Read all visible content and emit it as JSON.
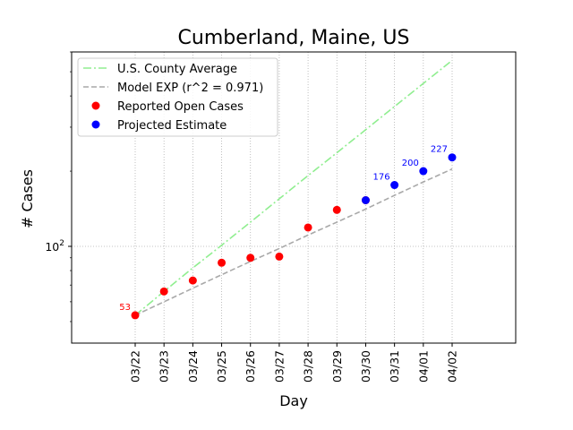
{
  "chart_data": {
    "type": "line",
    "title": "Cumberland, Maine, US",
    "xlabel": "Day",
    "ylabel": "# Cases",
    "y_scale": "log",
    "ylim": [
      41,
      600
    ],
    "y_ticks": [
      {
        "value": 100,
        "label": "10",
        "sup": "2"
      }
    ],
    "categories": [
      "03/22",
      "03/23",
      "03/24",
      "03/25",
      "03/26",
      "03/27",
      "03/28",
      "03/29",
      "03/30",
      "03/31",
      "04/01",
      "04/02"
    ],
    "grid": true,
    "legend_position": "top-left",
    "series": [
      {
        "name": "U.S. County Average",
        "style": "dash-dot",
        "color": "#90ee90",
        "values": [
          53,
          66,
          82,
          101,
          125,
          155,
          192,
          237,
          293,
          363,
          449,
          555
        ]
      },
      {
        "name": "Model EXP (r^2 = 0.971)",
        "style": "dashed",
        "color": "#a9a9a9",
        "values": [
          53,
          60,
          68,
          77,
          87,
          98,
          111,
          125,
          141,
          160,
          181,
          204
        ]
      },
      {
        "name": "Reported Open Cases",
        "style": "markers",
        "color": "#ff0000",
        "values": [
          53,
          66,
          73,
          86,
          90,
          91,
          119,
          140,
          153,
          null,
          null,
          null
        ]
      },
      {
        "name": "Projected Estimate",
        "style": "markers",
        "color": "#0000ff",
        "values": [
          null,
          null,
          null,
          null,
          null,
          null,
          null,
          null,
          153,
          176,
          200,
          227
        ]
      }
    ],
    "annotations": [
      {
        "category": "03/22",
        "value": 53,
        "text": "53",
        "color": "#ff0000"
      },
      {
        "category": "03/31",
        "value": 176,
        "text": "176",
        "color": "#0000ff"
      },
      {
        "category": "04/01",
        "value": 200,
        "text": "200",
        "color": "#0000ff"
      },
      {
        "category": "04/02",
        "value": 227,
        "text": "227",
        "color": "#0000ff"
      }
    ]
  }
}
